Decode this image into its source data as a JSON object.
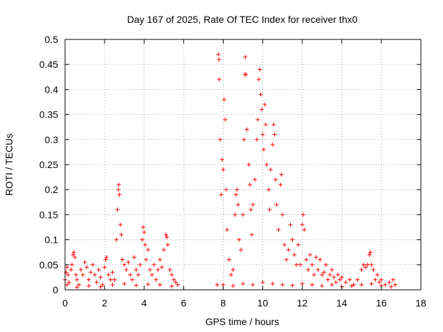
{
  "chart_data": {
    "type": "scatter",
    "title": "Day 167 of 2025, Rate Of TEC Index for receiver thx0",
    "xlabel": "GPS time / hours",
    "ylabel": "ROTI / TECUs",
    "xlim": [
      0,
      18
    ],
    "ylim": [
      0,
      0.5
    ],
    "xticks": [
      0,
      2,
      4,
      6,
      8,
      10,
      12,
      14,
      16,
      18
    ],
    "xtick_labels": [
      "0",
      "2",
      "4",
      "6",
      "8",
      "10",
      "12",
      "14",
      "16",
      "18"
    ],
    "yticks": [
      0,
      0.05,
      0.1,
      0.15,
      0.2,
      0.25,
      0.3,
      0.35,
      0.4,
      0.45,
      0.5
    ],
    "ytick_labels": [
      "0",
      "0.05",
      "0.1",
      "0.15",
      "0.2",
      "0.25",
      "0.3",
      "0.35",
      "0.4",
      "0.45",
      "0.5"
    ],
    "grid": true,
    "marker": "+",
    "color": "#ff0000",
    "series": [
      {
        "name": "ROTI",
        "points": [
          [
            0.0,
            0.02
          ],
          [
            0.05,
            0.035
          ],
          [
            0.1,
            0.045
          ],
          [
            0.15,
            0.03
          ],
          [
            0.2,
            0.015
          ],
          [
            0.3,
            0.04
          ],
          [
            0.35,
            0.05
          ],
          [
            0.4,
            0.07
          ],
          [
            0.45,
            0.075
          ],
          [
            0.5,
            0.065
          ],
          [
            0.55,
            0.03
          ],
          [
            0.6,
            0.02
          ],
          [
            0.7,
            0.01
          ],
          [
            0.8,
            0.04
          ],
          [
            0.9,
            0.03
          ],
          [
            1.0,
            0.055
          ],
          [
            1.1,
            0.045
          ],
          [
            1.2,
            0.02
          ],
          [
            1.3,
            0.035
          ],
          [
            1.4,
            0.05
          ],
          [
            1.5,
            0.03
          ],
          [
            1.6,
            0.015
          ],
          [
            1.7,
            0.04
          ],
          [
            1.8,
            0.025
          ],
          [
            1.9,
            0.01
          ],
          [
            2.0,
            0.045
          ],
          [
            2.05,
            0.06
          ],
          [
            2.1,
            0.065
          ],
          [
            2.2,
            0.03
          ],
          [
            2.3,
            0.02
          ],
          [
            2.4,
            0.035
          ],
          [
            2.5,
            0.02
          ],
          [
            2.6,
            0.1
          ],
          [
            2.65,
            0.16
          ],
          [
            2.7,
            0.2
          ],
          [
            2.72,
            0.21
          ],
          [
            2.75,
            0.19
          ],
          [
            2.8,
            0.13
          ],
          [
            2.85,
            0.11
          ],
          [
            2.9,
            0.06
          ],
          [
            3.0,
            0.05
          ],
          [
            3.1,
            0.04
          ],
          [
            3.2,
            0.055
          ],
          [
            3.3,
            0.03
          ],
          [
            3.4,
            0.02
          ],
          [
            3.5,
            0.065
          ],
          [
            3.6,
            0.04
          ],
          [
            3.7,
            0.03
          ],
          [
            3.8,
            0.05
          ],
          [
            3.9,
            0.1
          ],
          [
            3.95,
            0.125
          ],
          [
            4.0,
            0.115
          ],
          [
            4.05,
            0.09
          ],
          [
            4.1,
            0.06
          ],
          [
            4.2,
            0.08
          ],
          [
            4.3,
            0.04
          ],
          [
            4.4,
            0.03
          ],
          [
            4.5,
            0.05
          ],
          [
            4.6,
            0.02
          ],
          [
            4.7,
            0.04
          ],
          [
            4.8,
            0.06
          ],
          [
            4.9,
            0.045
          ],
          [
            5.0,
            0.08
          ],
          [
            5.1,
            0.11
          ],
          [
            5.15,
            0.105
          ],
          [
            5.2,
            0.09
          ],
          [
            5.3,
            0.04
          ],
          [
            5.4,
            0.03
          ],
          [
            5.5,
            0.02
          ],
          [
            5.6,
            0.015
          ],
          [
            5.7,
            0.01
          ],
          [
            0.1,
            0.01
          ],
          [
            0.6,
            0.005
          ],
          [
            1.2,
            0.008
          ],
          [
            1.8,
            0.006
          ],
          [
            2.4,
            0.01
          ],
          [
            3.0,
            0.012
          ],
          [
            3.6,
            0.009
          ],
          [
            4.2,
            0.011
          ],
          [
            4.8,
            0.01
          ],
          [
            5.4,
            0.007
          ],
          [
            7.7,
            0.01
          ],
          [
            7.75,
            0.47
          ],
          [
            7.78,
            0.46
          ],
          [
            7.8,
            0.42
          ],
          [
            7.85,
            0.3
          ],
          [
            7.9,
            0.19
          ],
          [
            7.95,
            0.26
          ],
          [
            8.0,
            0.24
          ],
          [
            8.05,
            0.38
          ],
          [
            8.1,
            0.34
          ],
          [
            8.15,
            0.2
          ],
          [
            8.2,
            0.12
          ],
          [
            8.3,
            0.06
          ],
          [
            8.4,
            0.03
          ],
          [
            8.5,
            0.04
          ],
          [
            8.6,
            0.15
          ],
          [
            8.65,
            0.19
          ],
          [
            8.7,
            0.2
          ],
          [
            8.75,
            0.17
          ],
          [
            8.8,
            0.1
          ],
          [
            8.9,
            0.08
          ],
          [
            9.0,
            0.15
          ],
          [
            9.05,
            0.3
          ],
          [
            9.1,
            0.43
          ],
          [
            9.12,
            0.465
          ],
          [
            9.15,
            0.43
          ],
          [
            9.2,
            0.32
          ],
          [
            9.3,
            0.25
          ],
          [
            9.35,
            0.21
          ],
          [
            9.4,
            0.16
          ],
          [
            9.45,
            0.11
          ],
          [
            9.5,
            0.17
          ],
          [
            9.6,
            0.22
          ],
          [
            9.7,
            0.3
          ],
          [
            9.75,
            0.34
          ],
          [
            9.8,
            0.42
          ],
          [
            9.85,
            0.44
          ],
          [
            9.9,
            0.39
          ],
          [
            9.95,
            0.36
          ],
          [
            10.0,
            0.31
          ],
          [
            10.05,
            0.28
          ],
          [
            10.1,
            0.37
          ],
          [
            10.15,
            0.33
          ],
          [
            10.2,
            0.25
          ],
          [
            10.3,
            0.2
          ],
          [
            10.35,
            0.16
          ],
          [
            10.4,
            0.24
          ],
          [
            10.5,
            0.29
          ],
          [
            10.55,
            0.33
          ],
          [
            10.6,
            0.31
          ],
          [
            10.65,
            0.22
          ],
          [
            10.7,
            0.17
          ],
          [
            10.8,
            0.12
          ],
          [
            10.9,
            0.21
          ],
          [
            10.95,
            0.23
          ],
          [
            11.0,
            0.15
          ],
          [
            11.1,
            0.09
          ],
          [
            11.2,
            0.06
          ],
          [
            11.3,
            0.08
          ],
          [
            11.4,
            0.13
          ],
          [
            11.5,
            0.1
          ],
          [
            11.6,
            0.07
          ],
          [
            11.7,
            0.05
          ],
          [
            11.8,
            0.09
          ],
          [
            11.9,
            0.05
          ],
          [
            12.0,
            0.13
          ],
          [
            12.05,
            0.15
          ],
          [
            12.1,
            0.12
          ],
          [
            12.2,
            0.06
          ],
          [
            12.3,
            0.04
          ],
          [
            12.4,
            0.07
          ],
          [
            12.5,
            0.05
          ],
          [
            12.6,
            0.03
          ],
          [
            12.7,
            0.065
          ],
          [
            12.8,
            0.04
          ],
          [
            12.9,
            0.06
          ],
          [
            13.0,
            0.03
          ],
          [
            13.1,
            0.035
          ],
          [
            13.2,
            0.05
          ],
          [
            13.3,
            0.02
          ],
          [
            13.4,
            0.03
          ],
          [
            13.5,
            0.04
          ],
          [
            13.6,
            0.025
          ],
          [
            13.7,
            0.015
          ],
          [
            13.8,
            0.03
          ],
          [
            13.9,
            0.02
          ],
          [
            14.0,
            0.025
          ],
          [
            14.2,
            0.015
          ],
          [
            14.4,
            0.02
          ],
          [
            14.6,
            0.01
          ],
          [
            14.8,
            0.02
          ],
          [
            15.0,
            0.04
          ],
          [
            15.1,
            0.05
          ],
          [
            15.2,
            0.045
          ],
          [
            15.3,
            0.05
          ],
          [
            15.4,
            0.07
          ],
          [
            15.45,
            0.075
          ],
          [
            15.5,
            0.05
          ],
          [
            15.6,
            0.04
          ],
          [
            15.7,
            0.02
          ],
          [
            15.8,
            0.03
          ],
          [
            15.9,
            0.015
          ],
          [
            16.0,
            0.02
          ],
          [
            16.2,
            0.01
          ],
          [
            16.4,
            0.015
          ],
          [
            16.6,
            0.02
          ],
          [
            16.7,
            0.01
          ],
          [
            8.0,
            0.01
          ],
          [
            8.5,
            0.008
          ],
          [
            9.0,
            0.012
          ],
          [
            9.5,
            0.01
          ],
          [
            10.0,
            0.015
          ],
          [
            10.5,
            0.012
          ],
          [
            11.0,
            0.01
          ],
          [
            11.5,
            0.009
          ],
          [
            12.0,
            0.012
          ],
          [
            12.5,
            0.01
          ],
          [
            13.0,
            0.008
          ],
          [
            13.5,
            0.01
          ],
          [
            14.0,
            0.006
          ],
          [
            14.5,
            0.008
          ],
          [
            15.0,
            0.01
          ],
          [
            15.5,
            0.012
          ],
          [
            16.0,
            0.008
          ],
          [
            16.5,
            0.006
          ]
        ]
      }
    ]
  }
}
